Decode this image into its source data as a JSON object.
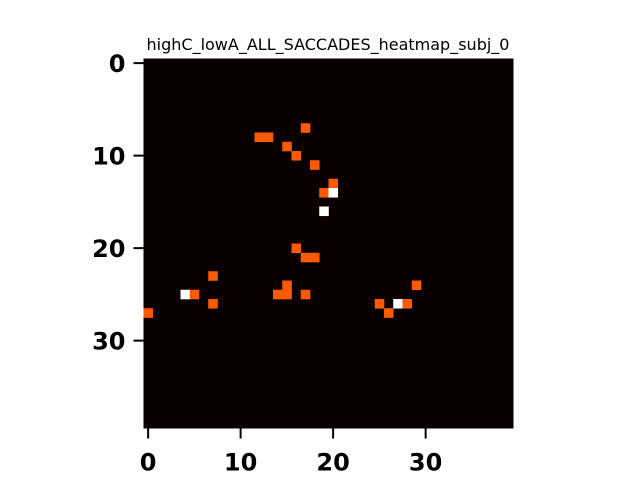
{
  "chart_data": {
    "type": "heatmap",
    "title": "highC_lowA_ALL_SACCADES_heatmap_subj_0",
    "xlabel": "",
    "ylabel": "",
    "grid_size": [
      40,
      40
    ],
    "x_ticks": [
      0,
      10,
      20,
      30
    ],
    "y_ticks": [
      0,
      10,
      20,
      30
    ],
    "xlim": [
      0,
      39
    ],
    "ylim": [
      39,
      0
    ],
    "colormap": "hot",
    "value_range": [
      0,
      2
    ],
    "colors": {
      "background": "#0a0000",
      "level_1": "#ff5a00",
      "level_2": "#ffffff"
    },
    "cells": [
      {
        "x": 17,
        "y": 7,
        "value": 1
      },
      {
        "x": 12,
        "y": 8,
        "value": 1
      },
      {
        "x": 13,
        "y": 8,
        "value": 1
      },
      {
        "x": 15,
        "y": 9,
        "value": 1
      },
      {
        "x": 16,
        "y": 10,
        "value": 1
      },
      {
        "x": 18,
        "y": 11,
        "value": 1
      },
      {
        "x": 20,
        "y": 13,
        "value": 1
      },
      {
        "x": 19,
        "y": 14,
        "value": 1
      },
      {
        "x": 20,
        "y": 14,
        "value": 2
      },
      {
        "x": 19,
        "y": 16,
        "value": 2
      },
      {
        "x": 16,
        "y": 20,
        "value": 1
      },
      {
        "x": 17,
        "y": 21,
        "value": 1
      },
      {
        "x": 18,
        "y": 21,
        "value": 1
      },
      {
        "x": 7,
        "y": 23,
        "value": 1
      },
      {
        "x": 15,
        "y": 24,
        "value": 1
      },
      {
        "x": 29,
        "y": 24,
        "value": 1
      },
      {
        "x": 4,
        "y": 25,
        "value": 2
      },
      {
        "x": 5,
        "y": 25,
        "value": 1
      },
      {
        "x": 14,
        "y": 25,
        "value": 1
      },
      {
        "x": 15,
        "y": 25,
        "value": 1
      },
      {
        "x": 17,
        "y": 25,
        "value": 1
      },
      {
        "x": 7,
        "y": 26,
        "value": 1
      },
      {
        "x": 25,
        "y": 26,
        "value": 1
      },
      {
        "x": 27,
        "y": 26,
        "value": 2
      },
      {
        "x": 28,
        "y": 26,
        "value": 1
      },
      {
        "x": 0,
        "y": 27,
        "value": 1
      },
      {
        "x": 26,
        "y": 27,
        "value": 1
      }
    ]
  }
}
